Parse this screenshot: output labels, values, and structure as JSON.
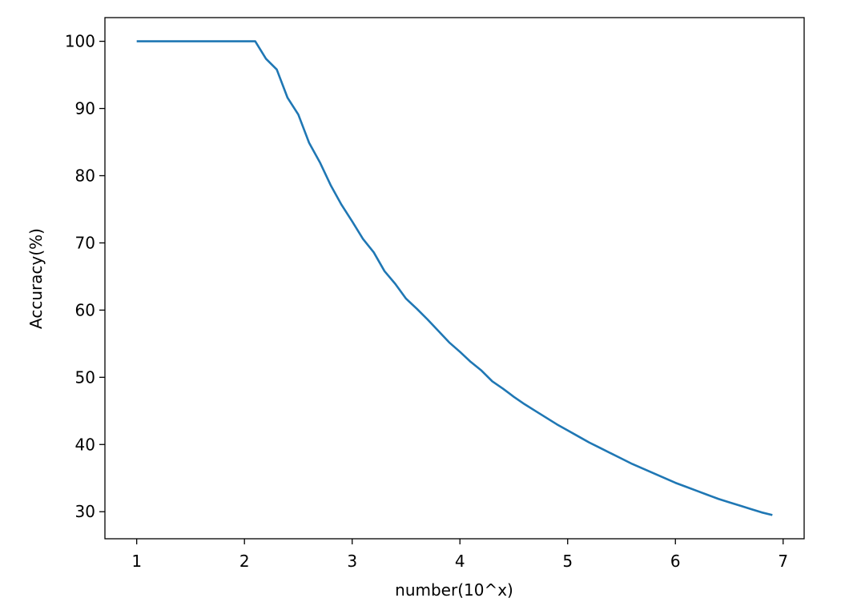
{
  "chart_data": {
    "type": "line",
    "x_label": "number(10^x)",
    "y_label": "Accuracy(%)",
    "x": [
      1,
      1.1,
      1.2,
      1.3,
      1.4,
      1.5,
      1.6,
      1.7,
      1.8,
      1.9,
      2,
      2.1,
      2.2,
      2.3,
      2.4,
      2.5,
      2.6,
      2.7,
      2.8,
      2.9,
      3,
      3.1,
      3.2,
      3.3,
      3.4,
      3.5,
      3.6,
      3.7,
      3.8,
      3.9,
      4,
      4.1,
      4.2,
      4.3,
      4.4,
      4.5,
      4.6,
      4.7,
      4.8,
      4.9,
      5,
      5.1,
      5.2,
      5.3,
      5.4,
      5.5,
      5.6,
      5.7,
      5.8,
      5.9,
      6,
      6.1,
      6.2,
      6.3,
      6.4,
      6.5,
      6.6,
      6.7,
      6.8,
      6.9
    ],
    "series": [
      {
        "color": "#1f77b4",
        "values": [
          100,
          100,
          100,
          100,
          100,
          100,
          100,
          100,
          100,
          100,
          100,
          100,
          97.4,
          95.8,
          91.6,
          89.1,
          84.9,
          82.0,
          78.6,
          75.7,
          73.2,
          70.6,
          68.6,
          65.8,
          63.9,
          61.7,
          60.2,
          58.6,
          56.9,
          55.2,
          53.8,
          52.3,
          51.0,
          49.4,
          48.3,
          47.1,
          46.0,
          45.0,
          44.0,
          43.0,
          42.1,
          41.2,
          40.3,
          39.5,
          38.7,
          37.9,
          37.1,
          36.4,
          35.7,
          35.0,
          34.3,
          33.7,
          33.1,
          32.5,
          31.9,
          31.4,
          30.9,
          30.4,
          29.9,
          29.5
        ]
      }
    ],
    "xlim": [
      0.705,
      7.195
    ],
    "ylim": [
      25.975,
      103.525
    ],
    "xticks": [
      1,
      2,
      3,
      4,
      5,
      6,
      7
    ],
    "yticks": [
      30,
      40,
      50,
      60,
      70,
      80,
      90,
      100
    ]
  }
}
